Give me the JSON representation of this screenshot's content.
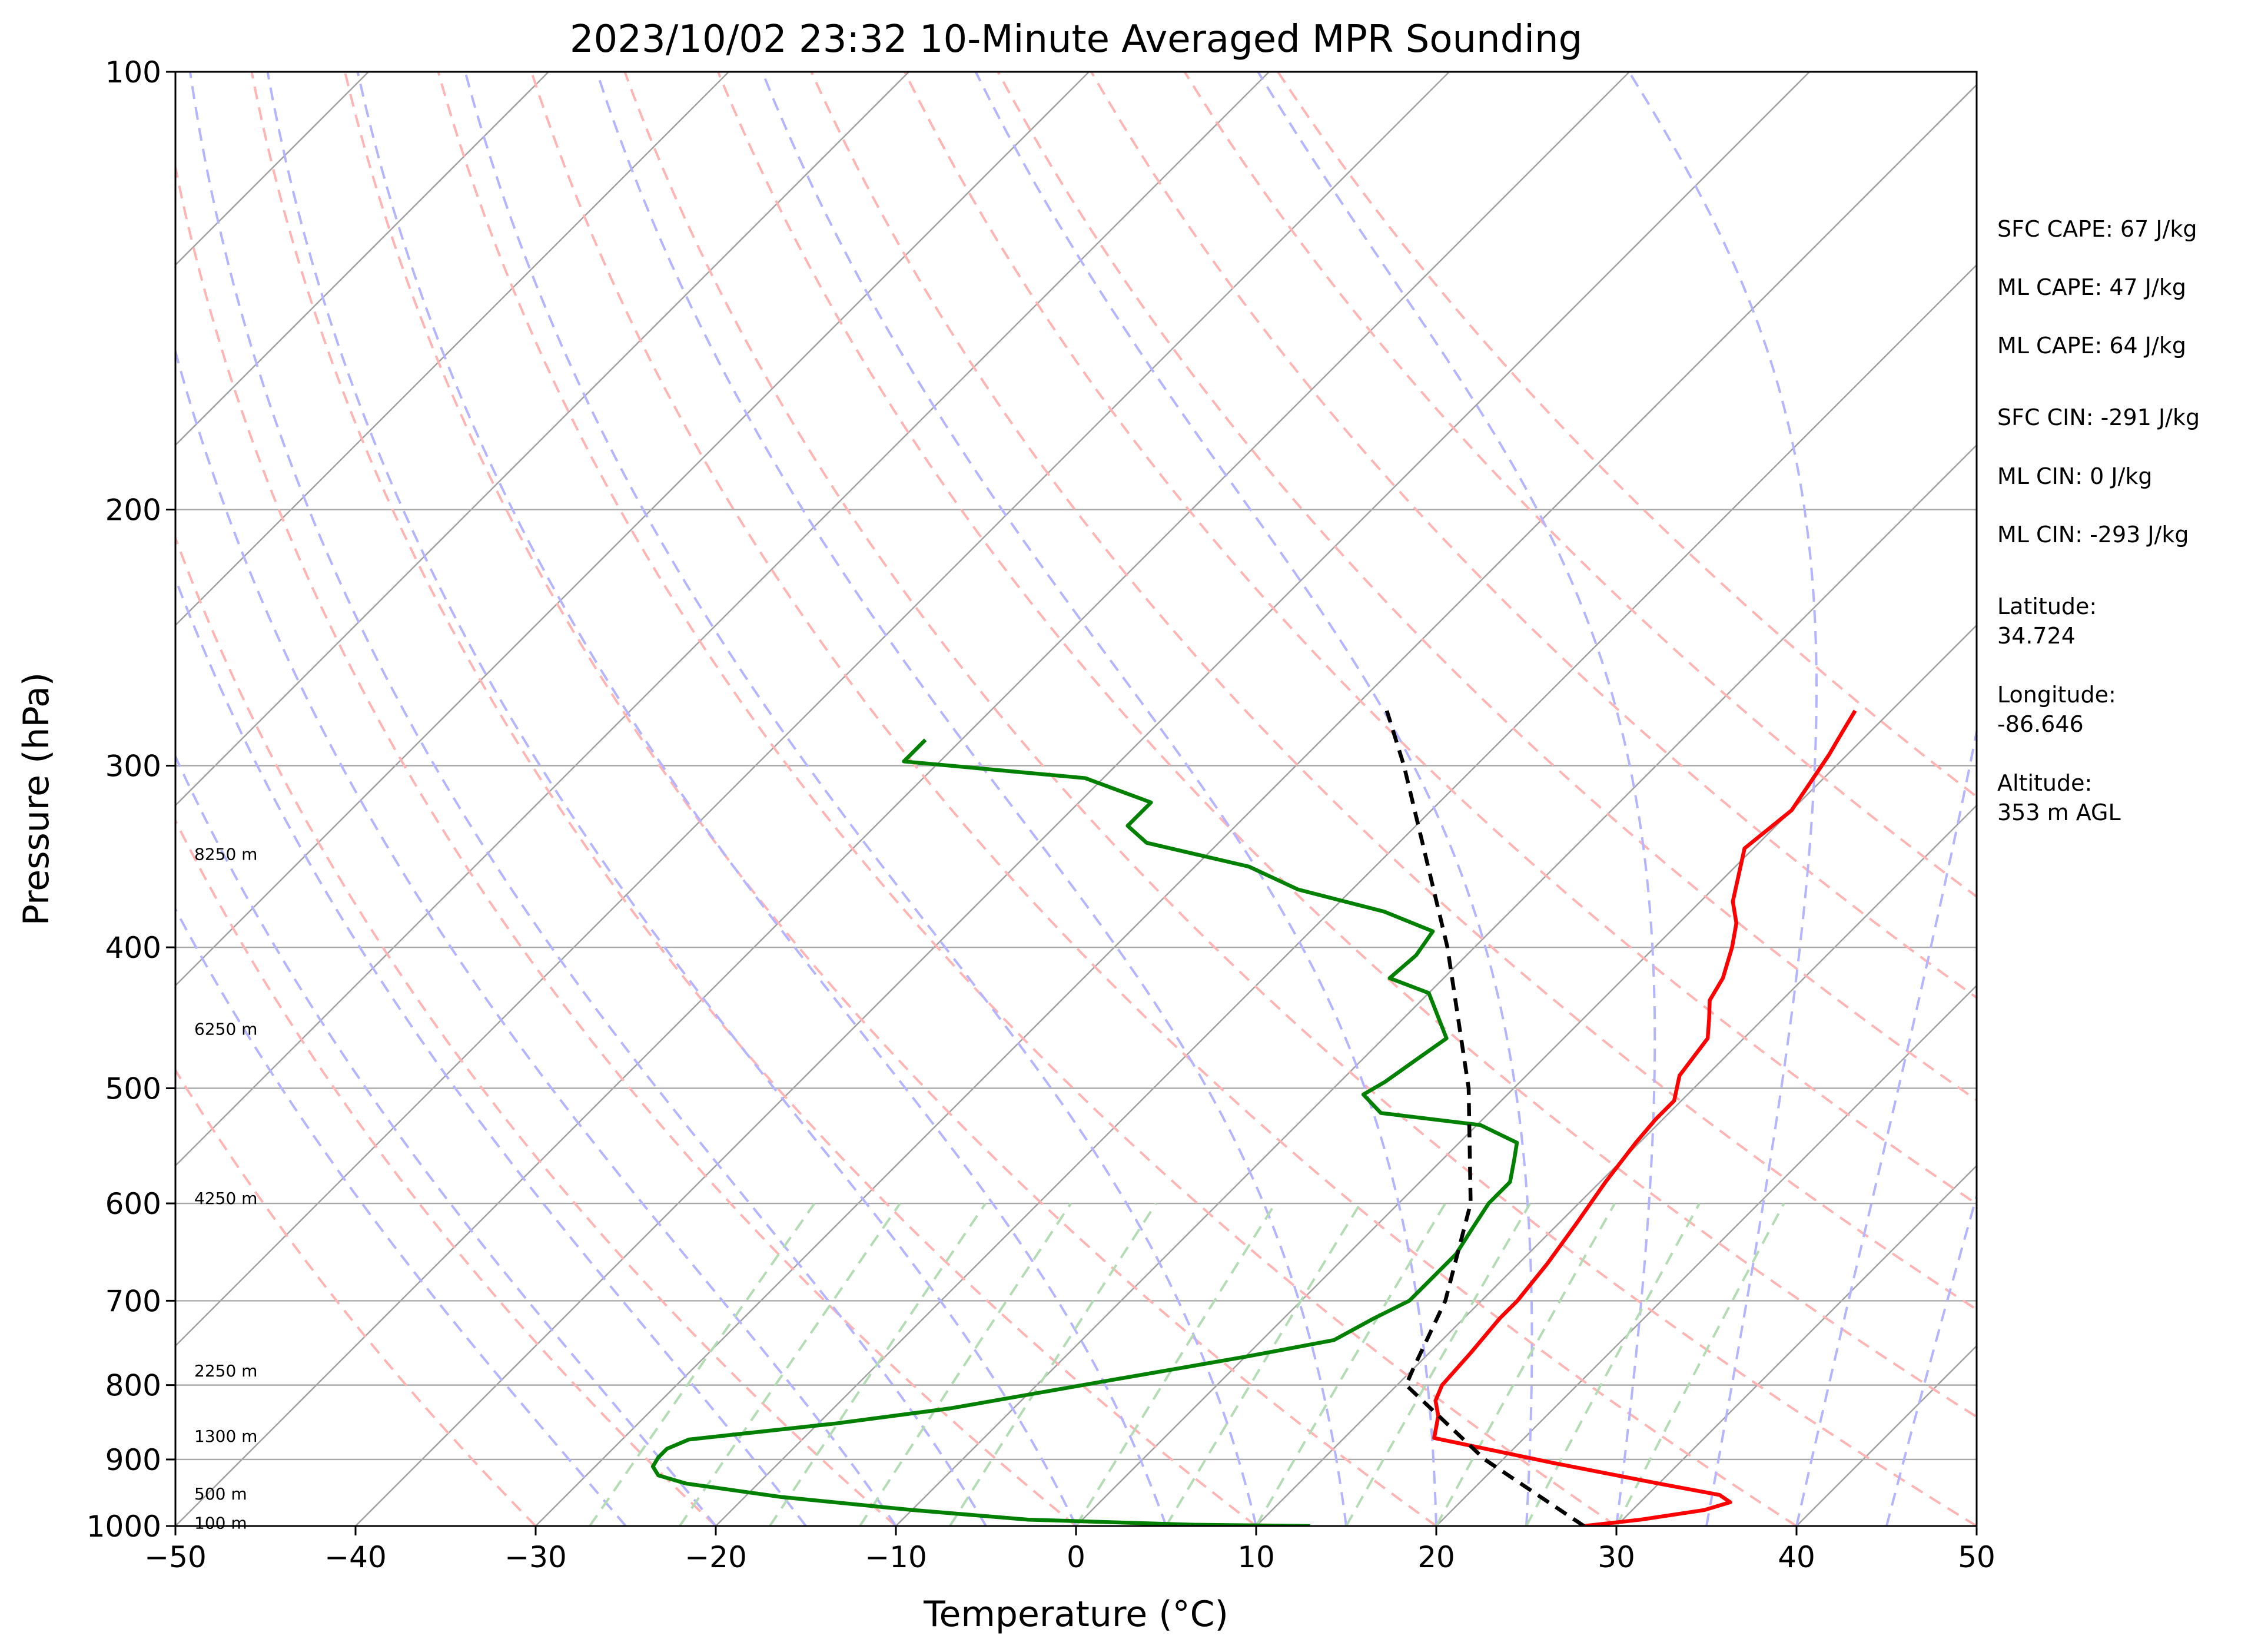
{
  "chart_data": {
    "type": "line",
    "subtype": "skew-T log-P diagram",
    "title": "2023/10/02 23:32 10-Minute Averaged MPR Sounding",
    "xlabel": "Temperature (°C)",
    "ylabel": "Pressure (hPa)",
    "xlim": [
      -50,
      50
    ],
    "ylim": [
      1000,
      100
    ],
    "y_scale": "log",
    "x_ticks": [
      -50,
      -40,
      -30,
      -20,
      -10,
      0,
      10,
      20,
      30,
      40,
      50
    ],
    "x_tick_labels": [
      "−50",
      "−40",
      "−30",
      "−20",
      "−10",
      "0",
      "10",
      "20",
      "30",
      "40",
      "50"
    ],
    "y_ticks": [
      1000,
      900,
      800,
      700,
      600,
      500,
      400,
      300,
      200,
      100
    ],
    "y_tick_labels": [
      "1000",
      "900",
      "800",
      "700",
      "600",
      "500",
      "400",
      "300",
      "200",
      "100"
    ],
    "grid": true,
    "background_lines": {
      "isotherms": {
        "color": "#a0a0a0",
        "style": "solid",
        "values": [
          -120,
          -110,
          -100,
          -90,
          -80,
          -70,
          -60,
          -50,
          -40,
          -30,
          -20,
          -10,
          0,
          10,
          20,
          30,
          40,
          50
        ]
      },
      "dry_adiabats": {
        "color": "#ffb4b4",
        "style": "dashed",
        "theta_celsius": [
          -30,
          -20,
          -10,
          0,
          10,
          20,
          30,
          40,
          50,
          60,
          70,
          80,
          90,
          100,
          110,
          120
        ]
      },
      "moist_adiabats": {
        "color": "#b4b4ff",
        "style": "dashed",
        "start_temp_celsius": [
          -25,
          -20,
          -15,
          -10,
          -5,
          0,
          5,
          10,
          15,
          20,
          25,
          30,
          35,
          40,
          45
        ]
      },
      "mixing_ratio_lines": {
        "color": "#b4dcb4",
        "style": "dashed",
        "surface_temp_celsius": [
          -27,
          -22,
          -17,
          -12,
          -7,
          0,
          5,
          10,
          15,
          20,
          25,
          30
        ]
      }
    },
    "series": [
      {
        "role": "temperature",
        "color": "#ff0000",
        "points": [
          {
            "p": 1000,
            "t": 28.2
          },
          {
            "p": 990,
            "t": 31.0
          },
          {
            "p": 975,
            "t": 34.0
          },
          {
            "p": 963,
            "t": 35.0
          },
          {
            "p": 952,
            "t": 34.0
          },
          {
            "p": 935,
            "t": 30.0
          },
          {
            "p": 905,
            "t": 23.0
          },
          {
            "p": 870,
            "t": 15.0
          },
          {
            "p": 840,
            "t": 14.0
          },
          {
            "p": 820,
            "t": 13.0
          },
          {
            "p": 800,
            "t": 12.5
          },
          {
            "p": 760,
            "t": 12.3
          },
          {
            "p": 720,
            "t": 12.0
          },
          {
            "p": 700,
            "t": 12.0
          },
          {
            "p": 660,
            "t": 11.6
          },
          {
            "p": 620,
            "t": 11.0
          },
          {
            "p": 580,
            "t": 10.3
          },
          {
            "p": 545,
            "t": 9.8
          },
          {
            "p": 525,
            "t": 9.6
          },
          {
            "p": 510,
            "t": 9.6
          },
          {
            "p": 490,
            "t": 8.5
          },
          {
            "p": 462,
            "t": 8.0
          },
          {
            "p": 448,
            "t": 7.0
          },
          {
            "p": 435,
            "t": 6.0
          },
          {
            "p": 420,
            "t": 5.5
          },
          {
            "p": 400,
            "t": 4.3
          },
          {
            "p": 385,
            "t": 3.2
          },
          {
            "p": 372,
            "t": 1.8
          },
          {
            "p": 342,
            "t": -0.5
          },
          {
            "p": 322,
            "t": 0.0
          },
          {
            "p": 295,
            "t": -1.0
          },
          {
            "p": 285,
            "t": -1.5
          },
          {
            "p": 275,
            "t": -2.0
          }
        ]
      },
      {
        "role": "dewpoint",
        "color": "#008000",
        "points": [
          {
            "p": 1000,
            "t": 13.0
          },
          {
            "p": 998,
            "t": 6.5
          },
          {
            "p": 990,
            "t": -3.0
          },
          {
            "p": 975,
            "t": -10.0
          },
          {
            "p": 955,
            "t": -18.0
          },
          {
            "p": 935,
            "t": -24.0
          },
          {
            "p": 923,
            "t": -26.0
          },
          {
            "p": 910,
            "t": -26.8
          },
          {
            "p": 897,
            "t": -27.0
          },
          {
            "p": 885,
            "t": -27.0
          },
          {
            "p": 872,
            "t": -26.3
          },
          {
            "p": 850,
            "t": -19.0
          },
          {
            "p": 830,
            "t": -13.5
          },
          {
            "p": 793,
            "t": -6.0
          },
          {
            "p": 765,
            "t": 0.0
          },
          {
            "p": 745,
            "t": 4.0
          },
          {
            "p": 720,
            "t": 5.0
          },
          {
            "p": 700,
            "t": 6.0
          },
          {
            "p": 670,
            "t": 6.0
          },
          {
            "p": 650,
            "t": 6.0
          },
          {
            "p": 625,
            "t": 5.5
          },
          {
            "p": 600,
            "t": 5.0
          },
          {
            "p": 580,
            "t": 5.0
          },
          {
            "p": 560,
            "t": 4.0
          },
          {
            "p": 545,
            "t": 3.2
          },
          {
            "p": 530,
            "t": 0.2
          },
          {
            "p": 520,
            "t": -6.0
          },
          {
            "p": 505,
            "t": -8.0
          },
          {
            "p": 495,
            "t": -7.5
          },
          {
            "p": 478,
            "t": -7.0
          },
          {
            "p": 462,
            "t": -6.5
          },
          {
            "p": 430,
            "t": -10.0
          },
          {
            "p": 420,
            "t": -13.0
          },
          {
            "p": 405,
            "t": -12.8
          },
          {
            "p": 390,
            "t": -13.2
          },
          {
            "p": 378,
            "t": -17.0
          },
          {
            "p": 365,
            "t": -23.0
          },
          {
            "p": 352,
            "t": -27.0
          },
          {
            "p": 339,
            "t": -34.0
          },
          {
            "p": 330,
            "t": -36.0
          },
          {
            "p": 318,
            "t": -36.0
          },
          {
            "p": 306,
            "t": -41.0
          },
          {
            "p": 298,
            "t": -52.0
          },
          {
            "p": 288,
            "t": -52.0
          }
        ]
      },
      {
        "role": "parcel",
        "color": "#000000",
        "style": "dashed",
        "points": [
          {
            "p": 1000,
            "t": 28.2
          },
          {
            "p": 900,
            "t": 19.0
          },
          {
            "p": 800,
            "t": 10.5
          },
          {
            "p": 780,
            "t": 10.0
          },
          {
            "p": 700,
            "t": 8.0
          },
          {
            "p": 600,
            "t": 4.0
          },
          {
            "p": 500,
            "t": -2.5
          },
          {
            "p": 400,
            "t": -11.5
          },
          {
            "p": 300,
            "t": -24.0
          },
          {
            "p": 275,
            "t": -28.0
          }
        ]
      }
    ],
    "height_labels": [
      {
        "p": 995,
        "label": "100 m"
      },
      {
        "p": 950,
        "label": "500 m"
      },
      {
        "p": 867,
        "label": "1300 m"
      },
      {
        "p": 782,
        "label": "2250 m"
      },
      {
        "p": 595,
        "label": "4250 m"
      },
      {
        "p": 455,
        "label": "6250 m"
      },
      {
        "p": 345,
        "label": "8250 m"
      }
    ],
    "annotations": [
      {
        "label": "SFC CAPE: 67 J/kg"
      },
      {
        "label": "ML CAPE: 47 J/kg"
      },
      {
        "label": "ML CAPE: 64 J/kg"
      },
      {
        "label": "SFC CIN: -291 J/kg"
      },
      {
        "label": "ML CIN: 0 J/kg"
      },
      {
        "label": "ML CIN: -293 J/kg"
      },
      {
        "label": "Latitude:\n34.724"
      },
      {
        "label": "Longitude:\n-86.646"
      },
      {
        "label": "Altitude:\n353 m AGL"
      }
    ]
  }
}
